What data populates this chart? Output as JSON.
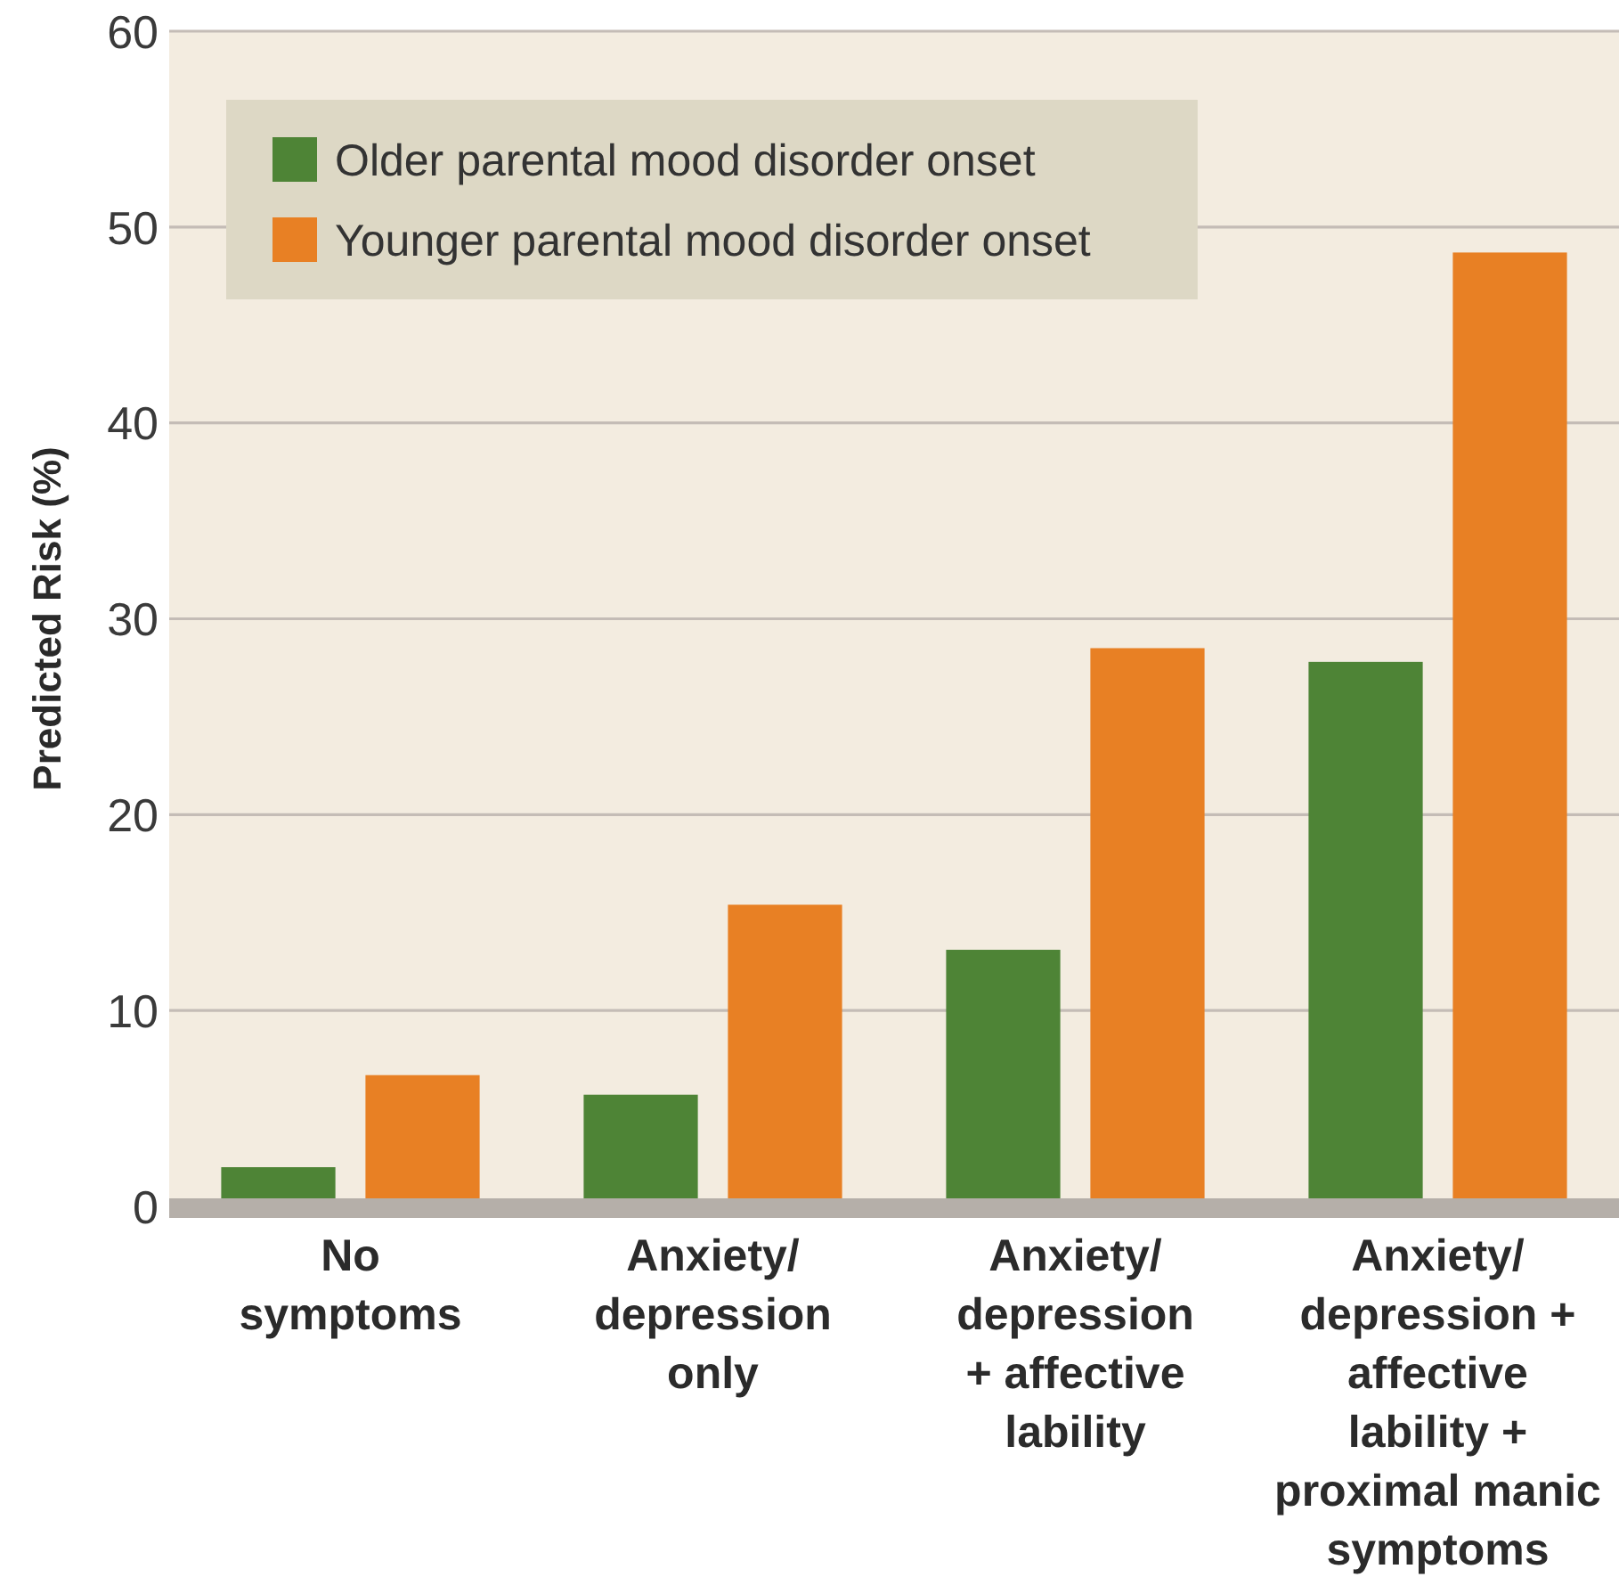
{
  "chart_data": {
    "type": "bar",
    "ylabel": "Predicted Risk (%)",
    "categories": [
      "No\nsymptoms",
      "Anxiety/\ndepression\nonly",
      "Anxiety/\ndepression\n+ affective\nlability",
      "Anxiety/\ndepression +\naffective\nlability +\nproximal manic\nsymptoms"
    ],
    "series": [
      {
        "name": "Older parental mood disorder onset",
        "color": "#4e8436",
        "values": [
          2.0,
          5.7,
          13.1,
          27.8
        ]
      },
      {
        "name": "Younger parental mood disorder onset",
        "color": "#e88024",
        "values": [
          6.7,
          15.4,
          28.5,
          48.7
        ]
      }
    ],
    "ylim": [
      0,
      60
    ],
    "yticks": [
      0,
      10,
      20,
      30,
      40,
      50,
      60
    ],
    "grid": "y",
    "legend": "top left"
  }
}
